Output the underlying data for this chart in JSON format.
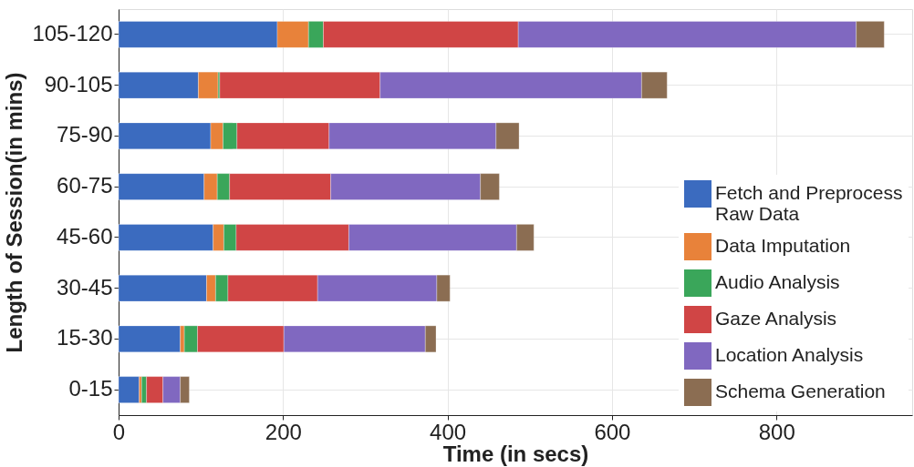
{
  "chart_data": {
    "type": "bar",
    "orientation": "horizontal",
    "stacked": true,
    "xlabel": "Time (in secs)",
    "ylabel": "Length of Session(in mins)",
    "categories": [
      "105-120",
      "90-105",
      "75-90",
      "60-75",
      "45-60",
      "30-45",
      "15-30",
      "0-15"
    ],
    "series": [
      {
        "name": "Fetch and Preprocess\nRaw Data",
        "color": "#3b6bbf",
        "values": [
          193,
          97,
          112,
          104,
          115,
          107,
          75,
          25
        ]
      },
      {
        "name": "Data Imputation",
        "color": "#e8823a",
        "values": [
          38,
          24,
          15,
          16,
          13,
          11,
          5,
          3
        ]
      },
      {
        "name": "Audio Analysis",
        "color": "#3aa65a",
        "values": [
          18,
          2,
          17,
          15,
          15,
          15,
          16,
          6
        ]
      },
      {
        "name": "Gaze Analysis",
        "color": "#d04545",
        "values": [
          237,
          195,
          112,
          123,
          137,
          109,
          105,
          20
        ]
      },
      {
        "name": "Location Analysis",
        "color": "#8068c0",
        "values": [
          411,
          318,
          203,
          182,
          204,
          145,
          172,
          21
        ]
      },
      {
        "name": "Schema Generation",
        "color": "#8b6d52",
        "values": [
          34,
          31,
          28,
          23,
          21,
          16,
          13,
          11
        ]
      }
    ],
    "xlim": [
      0,
      965
    ],
    "xticks": [
      0,
      200,
      400,
      600,
      800
    ],
    "grid": true,
    "legend": "bottom right"
  }
}
